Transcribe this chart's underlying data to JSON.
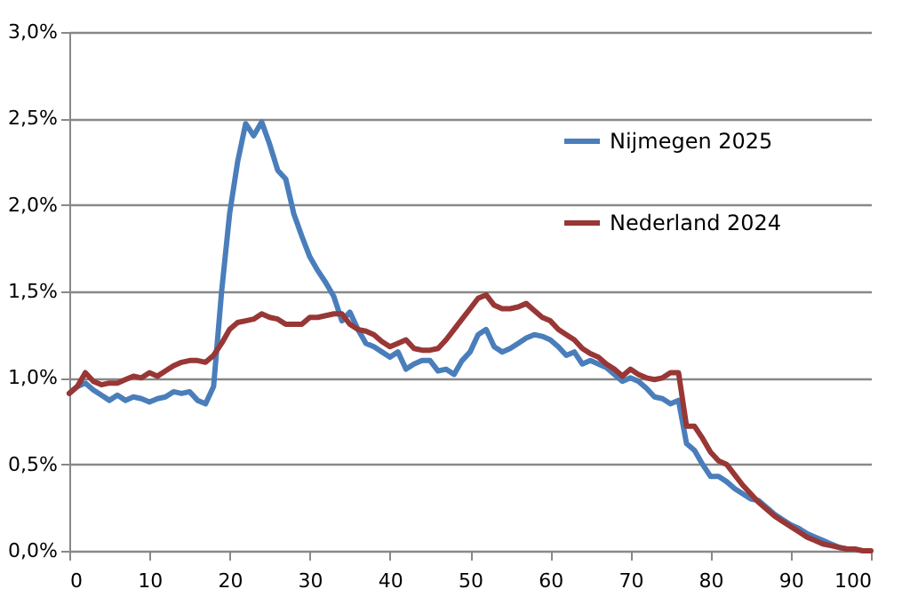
{
  "chart_data": {
    "type": "line",
    "x": [
      0,
      1,
      2,
      3,
      4,
      5,
      6,
      7,
      8,
      9,
      10,
      11,
      12,
      13,
      14,
      15,
      16,
      17,
      18,
      19,
      20,
      21,
      22,
      23,
      24,
      25,
      26,
      27,
      28,
      29,
      30,
      31,
      32,
      33,
      34,
      35,
      36,
      37,
      38,
      39,
      40,
      41,
      42,
      43,
      44,
      45,
      46,
      47,
      48,
      49,
      50,
      51,
      52,
      53,
      54,
      55,
      56,
      57,
      58,
      59,
      60,
      61,
      62,
      63,
      64,
      65,
      66,
      67,
      68,
      69,
      70,
      71,
      72,
      73,
      74,
      75,
      76,
      77,
      78,
      79,
      80,
      81,
      82,
      83,
      84,
      85,
      86,
      87,
      88,
      89,
      90,
      91,
      92,
      93,
      94,
      95,
      96,
      97,
      98,
      99,
      100
    ],
    "series": [
      {
        "name": "Nijmegen 2025",
        "color": "#4a7ebb",
        "values": [
          0.91,
          0.95,
          0.97,
          0.93,
          0.9,
          0.87,
          0.9,
          0.87,
          0.89,
          0.88,
          0.86,
          0.88,
          0.89,
          0.92,
          0.91,
          0.92,
          0.87,
          0.85,
          0.95,
          1.5,
          1.95,
          2.25,
          2.47,
          2.4,
          2.48,
          2.35,
          2.2,
          2.15,
          1.95,
          1.82,
          1.7,
          1.62,
          1.55,
          1.47,
          1.33,
          1.38,
          1.28,
          1.2,
          1.18,
          1.15,
          1.12,
          1.15,
          1.05,
          1.08,
          1.1,
          1.1,
          1.04,
          1.05,
          1.02,
          1.1,
          1.15,
          1.25,
          1.28,
          1.18,
          1.15,
          1.17,
          1.2,
          1.23,
          1.25,
          1.24,
          1.22,
          1.18,
          1.13,
          1.15,
          1.08,
          1.1,
          1.08,
          1.06,
          1.02,
          0.98,
          1.0,
          0.98,
          0.94,
          0.89,
          0.88,
          0.85,
          0.87,
          0.62,
          0.58,
          0.5,
          0.43,
          0.43,
          0.4,
          0.36,
          0.33,
          0.3,
          0.29,
          0.25,
          0.21,
          0.18,
          0.15,
          0.13,
          0.1,
          0.08,
          0.06,
          0.04,
          0.02,
          0.01,
          0.01,
          null,
          null
        ]
      },
      {
        "name": "Nederland 2024",
        "color": "#983735",
        "values": [
          0.91,
          0.95,
          1.03,
          0.98,
          0.96,
          0.97,
          0.97,
          0.99,
          1.01,
          1.0,
          1.03,
          1.01,
          1.04,
          1.07,
          1.09,
          1.1,
          1.1,
          1.09,
          1.13,
          1.2,
          1.28,
          1.32,
          1.33,
          1.34,
          1.37,
          1.35,
          1.34,
          1.31,
          1.31,
          1.31,
          1.35,
          1.35,
          1.36,
          1.37,
          1.37,
          1.31,
          1.28,
          1.27,
          1.25,
          1.21,
          1.18,
          1.2,
          1.22,
          1.17,
          1.16,
          1.16,
          1.17,
          1.22,
          1.28,
          1.34,
          1.4,
          1.46,
          1.48,
          1.42,
          1.4,
          1.4,
          1.41,
          1.43,
          1.39,
          1.35,
          1.33,
          1.28,
          1.25,
          1.22,
          1.17,
          1.14,
          1.12,
          1.08,
          1.05,
          1.01,
          1.05,
          1.02,
          1.0,
          0.99,
          1.0,
          1.03,
          1.03,
          0.72,
          0.72,
          0.65,
          0.57,
          0.52,
          0.5,
          0.44,
          0.38,
          0.33,
          0.28,
          0.24,
          0.2,
          0.17,
          0.14,
          0.11,
          0.08,
          0.06,
          0.04,
          0.03,
          0.02,
          0.01,
          0.01,
          0.0,
          0.0
        ]
      }
    ],
    "xlim": [
      0,
      100
    ],
    "xticks": [
      0,
      10,
      20,
      30,
      40,
      50,
      60,
      70,
      80,
      90,
      100
    ],
    "ylim": [
      0,
      3
    ],
    "yticks": [
      {
        "value": 0,
        "label": "0,0%"
      },
      {
        "value": 0.5,
        "label": "0,5%"
      },
      {
        "value": 1,
        "label": "1,0%"
      },
      {
        "value": 1.5,
        "label": "1,5%"
      },
      {
        "value": 2,
        "label": "2,0%"
      },
      {
        "value": 2.5,
        "label": "2,5%"
      },
      {
        "value": 3,
        "label": "3,0%"
      }
    ],
    "grid": "y",
    "legend": "top right",
    "marker": "none",
    "line_style": "solid"
  }
}
